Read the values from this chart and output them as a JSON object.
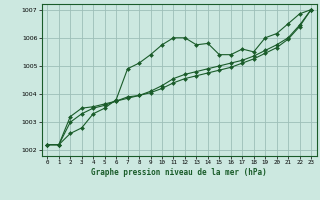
{
  "title": "Graphe pression niveau de la mer (hPa)",
  "bg_color": "#cce8e0",
  "grid_color": "#9dbfb8",
  "line_color1": "#1a5c2a",
  "line_color2": "#1a5c2a",
  "line_color3": "#1a5c2a",
  "xlim": [
    -0.5,
    23.5
  ],
  "ylim": [
    1001.8,
    1007.2
  ],
  "yticks": [
    1002,
    1003,
    1004,
    1005,
    1006,
    1007
  ],
  "xticks": [
    0,
    1,
    2,
    3,
    4,
    5,
    6,
    7,
    8,
    9,
    10,
    11,
    12,
    13,
    14,
    15,
    16,
    17,
    18,
    19,
    20,
    21,
    22,
    23
  ],
  "series1_x": [
    0,
    1,
    2,
    3,
    4,
    5,
    6,
    7,
    8,
    9,
    10,
    11,
    12,
    13,
    14,
    15,
    16,
    17,
    18,
    19,
    20,
    21,
    22,
    23
  ],
  "series1_y": [
    1002.2,
    1002.2,
    1002.6,
    1002.8,
    1003.3,
    1003.5,
    1003.8,
    1004.9,
    1005.1,
    1005.4,
    1005.75,
    1006.0,
    1006.0,
    1005.75,
    1005.8,
    1005.4,
    1005.4,
    1005.6,
    1005.5,
    1006.0,
    1006.15,
    1006.5,
    1006.85,
    1007.0
  ],
  "series2_x": [
    0,
    1,
    2,
    3,
    4,
    5,
    6,
    7,
    8,
    9,
    10,
    11,
    12,
    13,
    14,
    15,
    16,
    17,
    18,
    19,
    20,
    21,
    22,
    23
  ],
  "series2_y": [
    1002.2,
    1002.2,
    1003.2,
    1003.5,
    1003.55,
    1003.65,
    1003.75,
    1003.9,
    1003.95,
    1004.1,
    1004.3,
    1004.55,
    1004.7,
    1004.8,
    1004.9,
    1005.0,
    1005.1,
    1005.2,
    1005.35,
    1005.55,
    1005.75,
    1006.0,
    1006.45,
    1007.0
  ],
  "series3_x": [
    0,
    1,
    2,
    3,
    4,
    5,
    6,
    7,
    8,
    9,
    10,
    11,
    12,
    13,
    14,
    15,
    16,
    17,
    18,
    19,
    20,
    21,
    22,
    23
  ],
  "series3_y": [
    1002.2,
    1002.2,
    1003.0,
    1003.3,
    1003.5,
    1003.6,
    1003.75,
    1003.85,
    1003.95,
    1004.05,
    1004.2,
    1004.4,
    1004.55,
    1004.65,
    1004.75,
    1004.85,
    1004.95,
    1005.1,
    1005.25,
    1005.45,
    1005.65,
    1005.95,
    1006.4,
    1007.0
  ]
}
